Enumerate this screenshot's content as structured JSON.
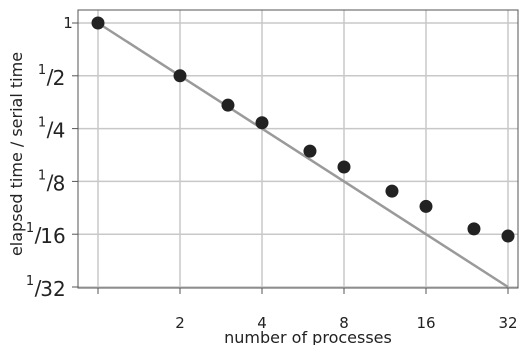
{
  "chart_data": {
    "type": "scatter",
    "title": "",
    "xlabel": "number of processes",
    "ylabel": "elapsed time / serial time",
    "x_scale": "log2",
    "y_scale": "log2",
    "xlim": [
      1,
      32
    ],
    "ylim": [
      0.03125,
      1
    ],
    "grid": true,
    "x_ticks": [
      {
        "value": 1,
        "label": ""
      },
      {
        "value": 2,
        "label": "2"
      },
      {
        "value": 4,
        "label": "4"
      },
      {
        "value": 8,
        "label": "8"
      },
      {
        "value": 16,
        "label": "16"
      },
      {
        "value": 32,
        "label": "32"
      }
    ],
    "y_ticks": [
      {
        "value": 1,
        "label": "1",
        "num": "",
        "den": ""
      },
      {
        "value": 0.5,
        "label": "",
        "num": "1",
        "den": "2"
      },
      {
        "value": 0.25,
        "label": "",
        "num": "1",
        "den": "4"
      },
      {
        "value": 0.125,
        "label": "",
        "num": "1",
        "den": "8"
      },
      {
        "value": 0.0625,
        "label": "",
        "num": "1",
        "den": "16"
      },
      {
        "value": 0.03125,
        "label": "",
        "num": "1",
        "den": "32"
      }
    ],
    "series": [
      {
        "type": "scatter",
        "color": "#222222",
        "points": [
          {
            "x": 1,
            "y": 1.0
          },
          {
            "x": 2,
            "y": 0.5
          },
          {
            "x": 3,
            "y": 0.34
          },
          {
            "x": 4,
            "y": 0.27
          },
          {
            "x": 6,
            "y": 0.186
          },
          {
            "x": 8,
            "y": 0.151
          },
          {
            "x": 12,
            "y": 0.11
          },
          {
            "x": 16,
            "y": 0.09
          },
          {
            "x": 24,
            "y": 0.067
          },
          {
            "x": 32,
            "y": 0.061
          }
        ]
      },
      {
        "type": "line",
        "color": "#9a9a9a",
        "points": [
          {
            "x": 1,
            "y": 1.0
          },
          {
            "x": 32,
            "y": 0.03125
          }
        ]
      }
    ]
  },
  "colors": {
    "grid": "#c8c8c8",
    "frame": "#555555",
    "ideal_line": "#9a9a9a",
    "markers": "#222222"
  }
}
